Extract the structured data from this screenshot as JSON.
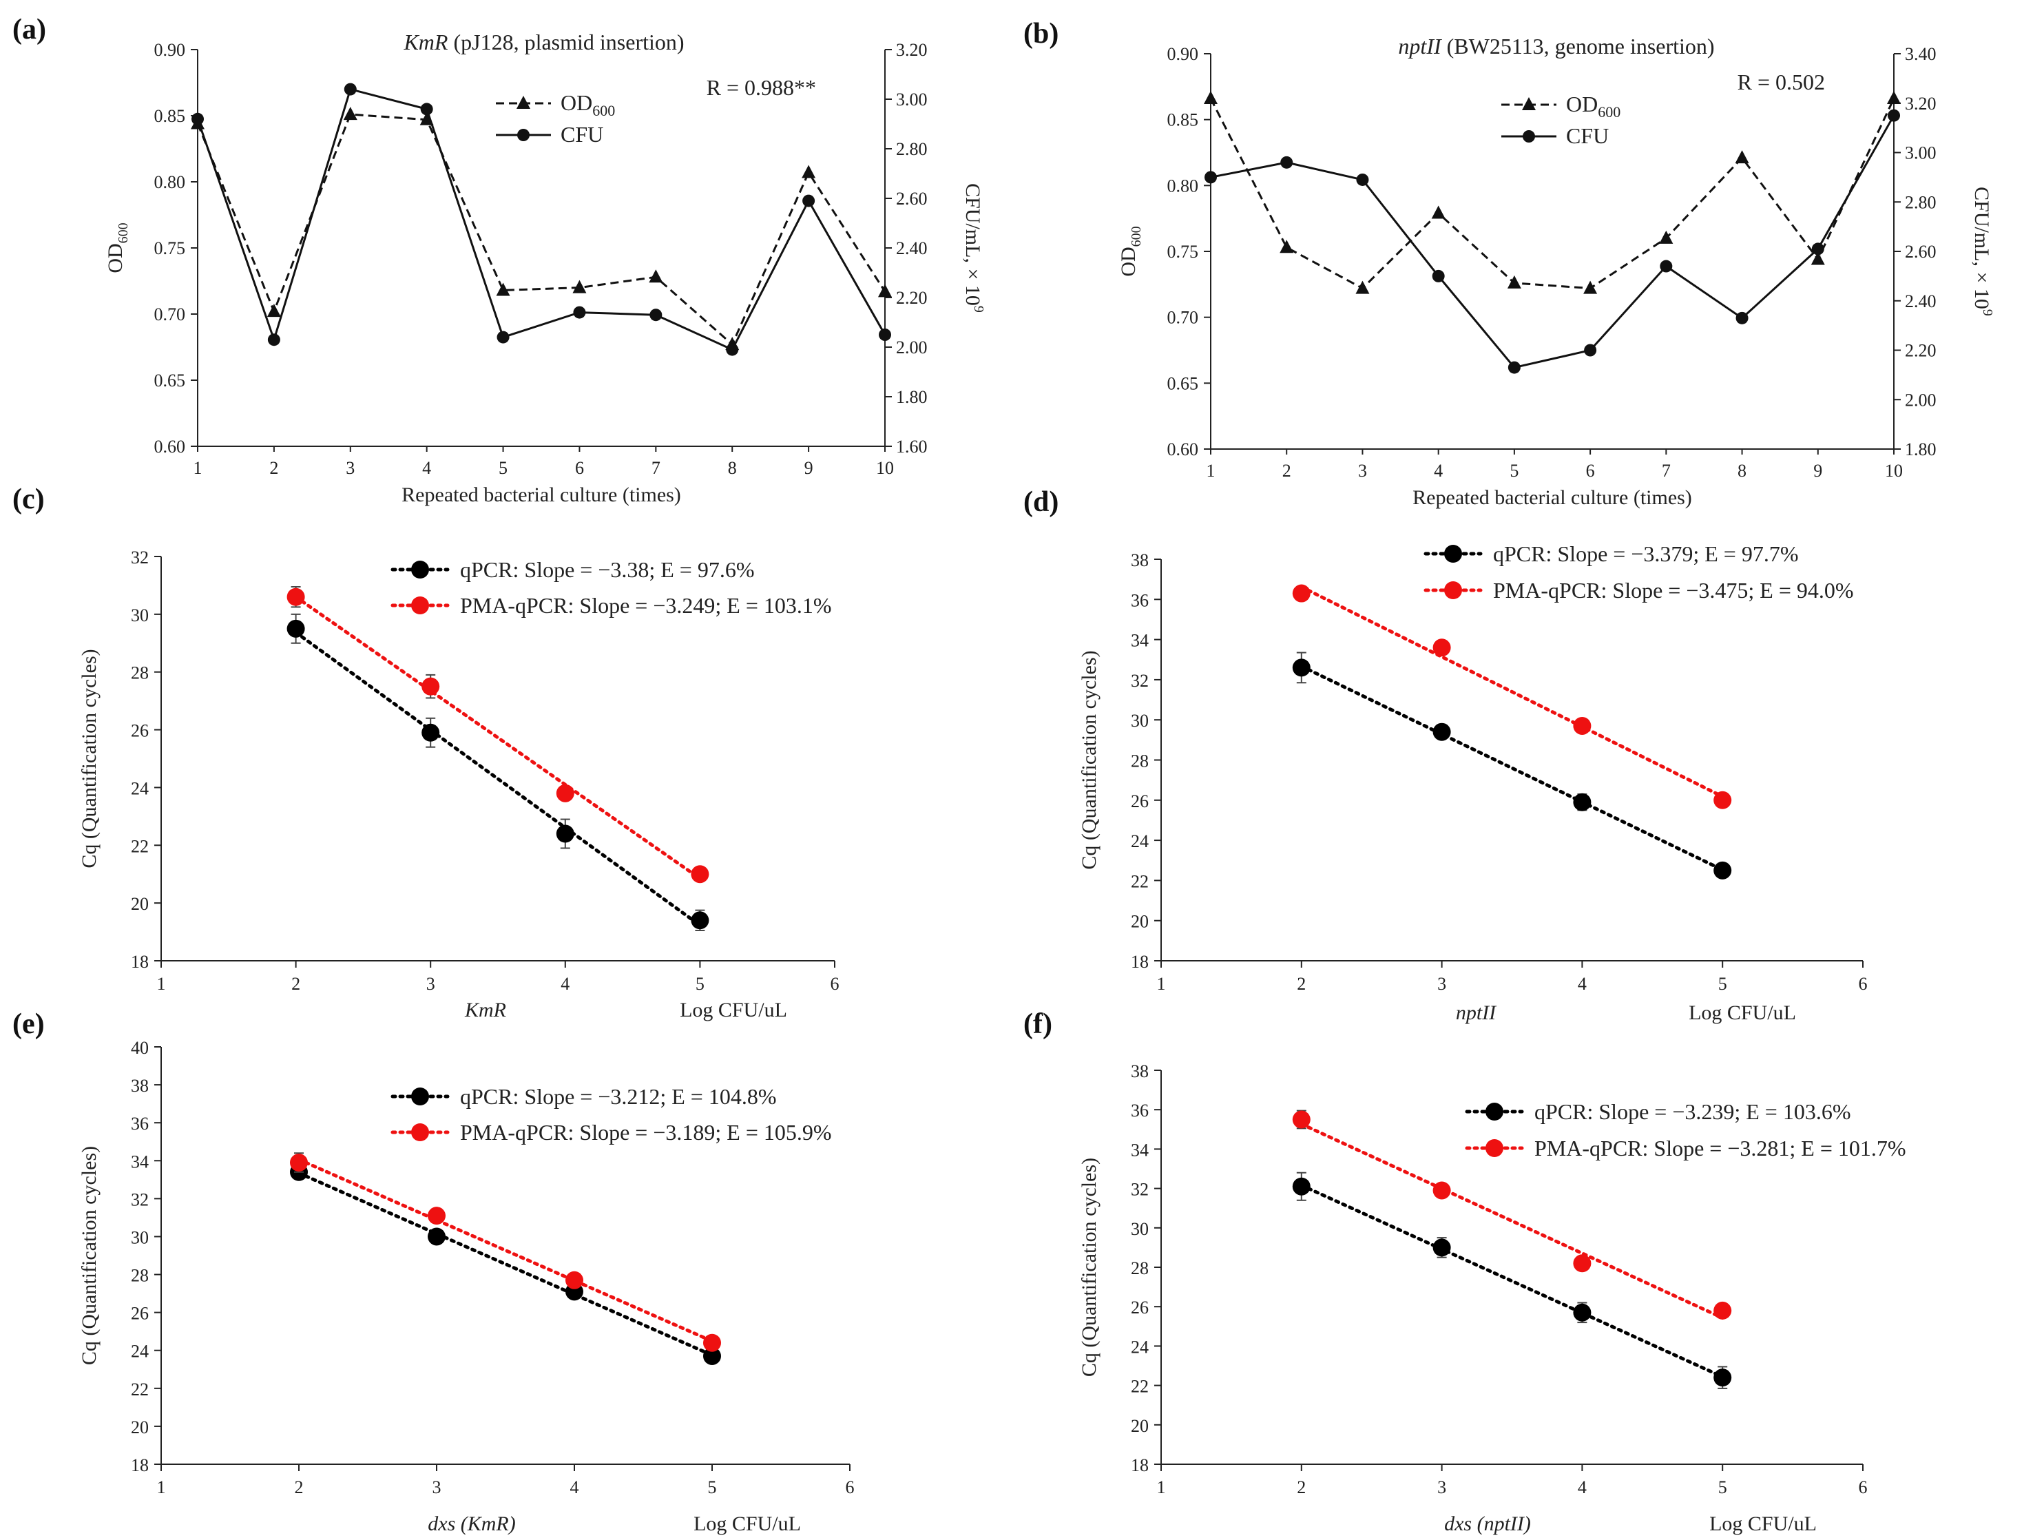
{
  "chart_data": [
    {
      "id": "a",
      "panel_label": "(a)",
      "type": "line",
      "title_italic": "KmR",
      "title_rest": " (pJ128, plasmid insertion)",
      "annotation": "R = 0.988**",
      "xlabel": "Repeated bacterial culture (times)",
      "ylabel": "OD",
      "ylabel_sub": "600",
      "y2label": "CFU/mL, × 10",
      "y2label_sup": "9",
      "x": [
        1,
        2,
        3,
        4,
        5,
        6,
        7,
        8,
        9,
        10
      ],
      "xlim": [
        1,
        10
      ],
      "ylim": [
        0.6,
        0.9
      ],
      "yticks": [
        "0.60",
        "0.65",
        "0.70",
        "0.75",
        "0.80",
        "0.85",
        "0.90"
      ],
      "y2lim": [
        1.6,
        3.2
      ],
      "y2ticks": [
        "1.60",
        "1.80",
        "2.00",
        "2.20",
        "2.40",
        "2.60",
        "2.80",
        "3.00",
        "3.20"
      ],
      "xticks": [
        "1",
        "2",
        "3",
        "4",
        "5",
        "6",
        "7",
        "8",
        "9",
        "10"
      ],
      "series": [
        {
          "name": "OD",
          "name_sub": "600",
          "axis": "left",
          "marker": "triangle",
          "dash": true,
          "values": [
            0.844,
            0.702,
            0.851,
            0.847,
            0.718,
            0.72,
            0.728,
            0.677,
            0.807,
            0.717
          ]
        },
        {
          "name": "CFU",
          "axis": "right",
          "marker": "circle",
          "dash": false,
          "values": [
            2.92,
            2.03,
            3.04,
            2.96,
            2.04,
            2.14,
            2.13,
            1.99,
            2.59,
            2.05
          ]
        }
      ]
    },
    {
      "id": "b",
      "panel_label": "(b)",
      "type": "line",
      "title_italic": "nptII",
      "title_rest": " (BW25113, genome  insertion)",
      "annotation": "R = 0.502",
      "xlabel": "Repeated bacterial culture (times)",
      "ylabel": "OD",
      "ylabel_sub": "600",
      "y2label": "CFU/mL, × 10",
      "y2label_sup": "9",
      "x": [
        1,
        2,
        3,
        4,
        5,
        6,
        7,
        8,
        9,
        10
      ],
      "xlim": [
        1,
        10
      ],
      "ylim": [
        0.6,
        0.9
      ],
      "yticks": [
        "0.60",
        "0.65",
        "0.70",
        "0.75",
        "0.80",
        "0.85",
        "0.90"
      ],
      "y2lim": [
        1.8,
        3.4
      ],
      "y2ticks": [
        "1.80",
        "2.00",
        "2.20",
        "2.40",
        "2.60",
        "2.80",
        "3.00",
        "3.20",
        "3.40"
      ],
      "xticks": [
        "1",
        "2",
        "3",
        "4",
        "5",
        "6",
        "7",
        "8",
        "9",
        "10"
      ],
      "series": [
        {
          "name": "OD",
          "name_sub": "600",
          "axis": "left",
          "marker": "triangle",
          "dash": true,
          "values": [
            0.866,
            0.753,
            0.722,
            0.779,
            0.726,
            0.722,
            0.76,
            0.821,
            0.744,
            0.866
          ]
        },
        {
          "name": "CFU",
          "axis": "right",
          "marker": "circle",
          "dash": false,
          "values": [
            2.9,
            2.96,
            2.89,
            2.5,
            2.13,
            2.2,
            2.54,
            2.33,
            2.61,
            3.15
          ]
        }
      ]
    },
    {
      "id": "c",
      "panel_label": "(c)",
      "type": "scatter",
      "xlabel_italic": "KmR",
      "xlabel2": "Log CFU/uL",
      "ylabel": "Cq (Quantification cycles)",
      "xlim": [
        1,
        6
      ],
      "xticks": [
        "1",
        "2",
        "3",
        "4",
        "5",
        "6"
      ],
      "ylim": [
        18,
        32
      ],
      "yticks": [
        "18",
        "20",
        "22",
        "24",
        "26",
        "28",
        "30",
        "32"
      ],
      "series": [
        {
          "name": "qPCR: Slope = −3.38; E = 97.6%",
          "color": "#000000",
          "x": [
            2,
            3,
            4,
            5
          ],
          "values": [
            29.5,
            25.9,
            22.4,
            19.4
          ],
          "err": [
            0.5,
            0.5,
            0.5,
            0.35
          ]
        },
        {
          "name": "PMA-qPCR: Slope = −3.249; E = 103.1%",
          "color": "#ee1111",
          "x": [
            2,
            3,
            4,
            5
          ],
          "values": [
            30.6,
            27.5,
            23.8,
            21.0
          ],
          "err": [
            0.35,
            0.4,
            0.2,
            0.2
          ]
        }
      ]
    },
    {
      "id": "d",
      "panel_label": "(d)",
      "type": "scatter",
      "xlabel_italic": "nptII",
      "xlabel2": "Log CFU/uL",
      "ylabel": "Cq (Quantification cycles)",
      "xlim": [
        1,
        6
      ],
      "xticks": [
        "1",
        "2",
        "3",
        "4",
        "5",
        "6"
      ],
      "ylim": [
        18,
        38
      ],
      "yticks": [
        "18",
        "20",
        "22",
        "24",
        "26",
        "28",
        "30",
        "32",
        "34",
        "36",
        "38"
      ],
      "series": [
        {
          "name": "qPCR: Slope = −3.379; E = 97.7%",
          "color": "#000000",
          "x": [
            2,
            3,
            4,
            5
          ],
          "values": [
            32.6,
            29.4,
            25.9,
            22.5
          ],
          "err": [
            0.75,
            0.3,
            0.4,
            0.35
          ]
        },
        {
          "name": "PMA-qPCR: Slope = −3.475; E = 94.0%",
          "color": "#ee1111",
          "x": [
            2,
            3,
            4,
            5
          ],
          "values": [
            36.3,
            33.6,
            29.7,
            26.0
          ],
          "err": [
            0.2,
            0.2,
            0.2,
            0.2
          ]
        }
      ]
    },
    {
      "id": "e",
      "panel_label": "(e)",
      "type": "scatter",
      "xlabel_italic": "dxs (KmR)",
      "xlabel2": "Log CFU/uL",
      "ylabel": "Cq (Quantification cycles)",
      "xlim": [
        1,
        6
      ],
      "xticks": [
        "1",
        "2",
        "3",
        "4",
        "5",
        "6"
      ],
      "ylim": [
        18,
        40
      ],
      "yticks": [
        "18",
        "20",
        "22",
        "24",
        "26",
        "28",
        "30",
        "32",
        "34",
        "36",
        "38",
        "40"
      ],
      "series": [
        {
          "name": "qPCR: Slope = −3.212; E = 104.8%",
          "color": "#000000",
          "x": [
            2,
            3,
            4,
            5
          ],
          "values": [
            33.4,
            30.0,
            27.1,
            23.7
          ],
          "err": [
            0.3,
            0.2,
            0.2,
            0.2
          ]
        },
        {
          "name": "PMA-qPCR: Slope = −3.189; E = 105.9%",
          "color": "#ee1111",
          "x": [
            2,
            3,
            4,
            5
          ],
          "values": [
            33.9,
            31.1,
            27.7,
            24.4
          ],
          "err": [
            0.5,
            0.2,
            0.2,
            0.2
          ]
        }
      ]
    },
    {
      "id": "f",
      "panel_label": "(f)",
      "type": "scatter",
      "xlabel_italic": "dxs (nptII)",
      "xlabel2": "Log CFU/uL",
      "ylabel": "Cq (Quantification cycles)",
      "xlim": [
        1,
        6
      ],
      "xticks": [
        "1",
        "2",
        "3",
        "4",
        "5",
        "6"
      ],
      "ylim": [
        18,
        38
      ],
      "yticks": [
        "18",
        "20",
        "22",
        "24",
        "26",
        "28",
        "30",
        "32",
        "34",
        "36",
        "38"
      ],
      "series": [
        {
          "name": "qPCR: Slope = −3.239; E = 103.6%",
          "color": "#000000",
          "x": [
            2,
            3,
            4,
            5
          ],
          "values": [
            32.1,
            29.0,
            25.7,
            22.4
          ],
          "err": [
            0.7,
            0.5,
            0.5,
            0.55
          ]
        },
        {
          "name": "PMA-qPCR: Slope = −3.281; E = 101.7%",
          "color": "#ee1111",
          "x": [
            2,
            3,
            4,
            5
          ],
          "values": [
            35.5,
            31.9,
            28.2,
            25.8
          ],
          "err": [
            0.45,
            0.2,
            0.2,
            0.2
          ]
        }
      ]
    }
  ]
}
